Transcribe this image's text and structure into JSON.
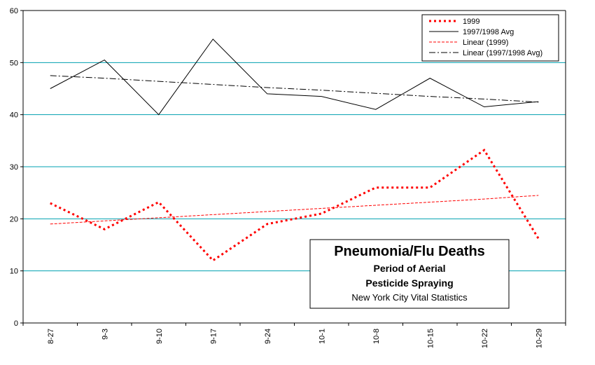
{
  "chart_data": {
    "type": "line",
    "categories": [
      "8-27",
      "9-3",
      "9-10",
      "9-17",
      "9-24",
      "10-1",
      "10-8",
      "10-15",
      "10-22",
      "10-29"
    ],
    "ylim": [
      0,
      60
    ],
    "yticks": [
      "0",
      "10",
      "20",
      "30",
      "40",
      "50",
      "60"
    ],
    "grid": "horizontal",
    "legend_position": "top-right",
    "series": [
      {
        "name": "1999",
        "values": [
          23,
          18,
          23.2,
          12,
          19,
          21,
          26,
          26,
          33.2,
          16.2
        ],
        "color": "#ff0000",
        "style": "dotted-bold"
      },
      {
        "name": "1997/1998 Avg",
        "values": [
          45,
          50.5,
          40,
          54.5,
          44,
          43.5,
          41,
          47,
          41.5,
          42.5
        ],
        "color": "#000000",
        "style": "solid"
      },
      {
        "name": "Linear (1999)",
        "values": [
          19,
          19.6,
          20.2,
          20.8,
          21.4,
          22.0,
          22.6,
          23.2,
          23.8,
          24.5
        ],
        "color": "#ff0000",
        "style": "dashed-thin"
      },
      {
        "name": "Linear (1997/1998 Avg)",
        "values": [
          47.5,
          47.0,
          46.4,
          45.8,
          45.2,
          44.7,
          44.1,
          43.5,
          43.0,
          42.4
        ],
        "color": "#000000",
        "style": "dash-dot"
      }
    ],
    "annotation": {
      "title": "Pneumonia/Flu Deaths",
      "line1": "Period of Aerial",
      "line2": "Pesticide Spraying",
      "source": "New York City Vital Statistics"
    }
  },
  "colors": {
    "gridline": "#00a0b0",
    "axis": "#000000"
  }
}
